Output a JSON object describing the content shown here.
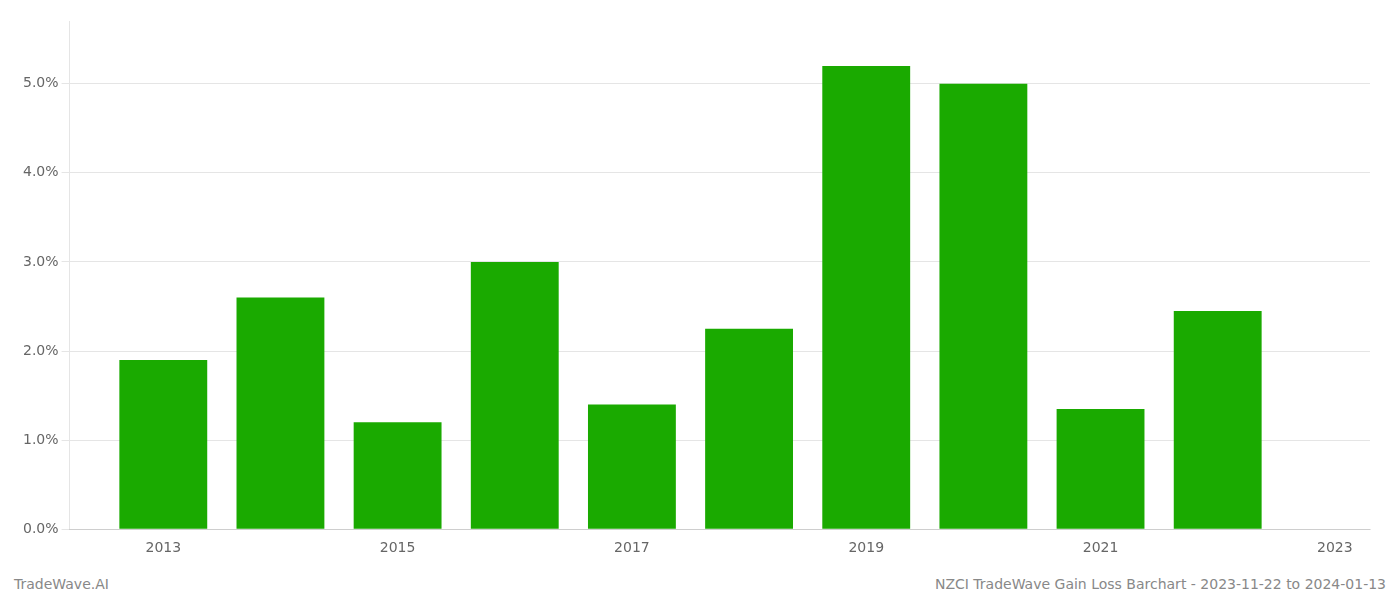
{
  "chart_data": {
    "type": "bar",
    "x": [
      2013,
      2014,
      2015,
      2016,
      2017,
      2018,
      2019,
      2020,
      2021,
      2022
    ],
    "values": [
      0.019,
      0.026,
      0.012,
      0.03,
      0.014,
      0.0225,
      0.052,
      0.05,
      0.0135,
      0.0245
    ],
    "color": "#1aaa00",
    "xlim": [
      2012.2,
      2023.3
    ],
    "xticks": [
      2013,
      2015,
      2017,
      2019,
      2021,
      2023
    ],
    "ylim": [
      0.0,
      0.057
    ],
    "yticks": [
      {
        "value": 0.0,
        "label": "0.0%"
      },
      {
        "value": 0.01,
        "label": "1.0%"
      },
      {
        "value": 0.02,
        "label": "2.0%"
      },
      {
        "value": 0.03,
        "label": "3.0%"
      },
      {
        "value": 0.04,
        "label": "4.0%"
      },
      {
        "value": 0.05,
        "label": "5.0%"
      }
    ],
    "grid": true,
    "annotations": [
      "TradeWave.AI",
      "NZCI TradeWave Gain Loss Barchart - 2023-11-22 to 2024-01-13"
    ]
  }
}
